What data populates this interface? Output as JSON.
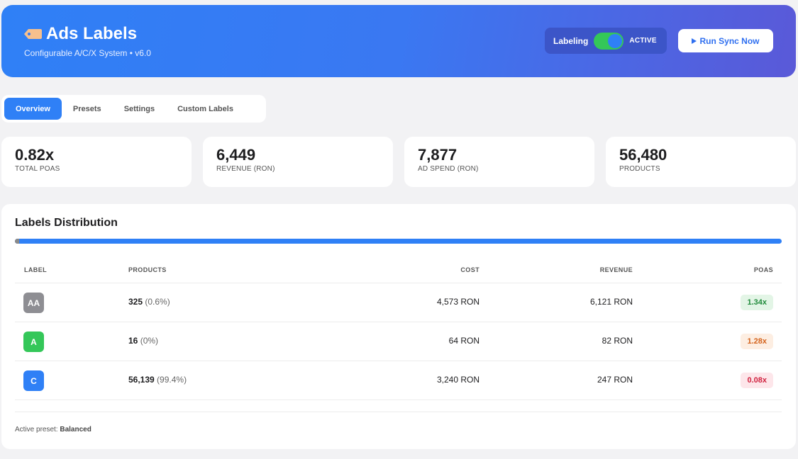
{
  "header": {
    "title": "Ads Labels",
    "subtitle": "Configurable A/C/X System • v6.0",
    "labeling_label": "Labeling",
    "labeling_state": "ACTIVE",
    "run_button": "Run Sync Now"
  },
  "tabs": [
    {
      "label": "Overview",
      "active": true
    },
    {
      "label": "Presets",
      "active": false
    },
    {
      "label": "Settings",
      "active": false
    },
    {
      "label": "Custom Labels",
      "active": false
    }
  ],
  "stats": [
    {
      "value": "0.82x",
      "label": "TOTAL POAS"
    },
    {
      "value": "6,449",
      "label": "REVENUE (RON)"
    },
    {
      "value": "7,877",
      "label": "AD SPEND (RON)"
    },
    {
      "value": "56,480",
      "label": "PRODUCTS"
    }
  ],
  "distribution": {
    "title": "Labels Distribution",
    "bar_share_aa_percent": 0.6,
    "columns": {
      "label": "LABEL",
      "products": "PRODUCTS",
      "cost": "COST",
      "revenue": "REVENUE",
      "poas": "POAS"
    },
    "rows": [
      {
        "label": "AA",
        "badge_color": "#8e8e93",
        "products": "325",
        "percent": "(0.6%)",
        "cost": "4,573 RON",
        "revenue": "6,121 RON",
        "poas": "1.34x",
        "poas_bg": "#e3f5e6",
        "poas_fg": "#1f8a3a"
      },
      {
        "label": "A",
        "badge_color": "#34c759",
        "products": "16",
        "percent": "(0%)",
        "cost": "64 RON",
        "revenue": "82 RON",
        "poas": "1.28x",
        "poas_bg": "#fdeee2",
        "poas_fg": "#d4631c"
      },
      {
        "label": "C",
        "badge_color": "#2f80f6",
        "products": "56,139",
        "percent": "(99.4%)",
        "cost": "3,240 RON",
        "revenue": "247 RON",
        "poas": "0.08x",
        "poas_bg": "#fde6ea",
        "poas_fg": "#d0223f"
      }
    ],
    "preset_prefix": "Active preset:",
    "preset_name": "Balanced"
  }
}
